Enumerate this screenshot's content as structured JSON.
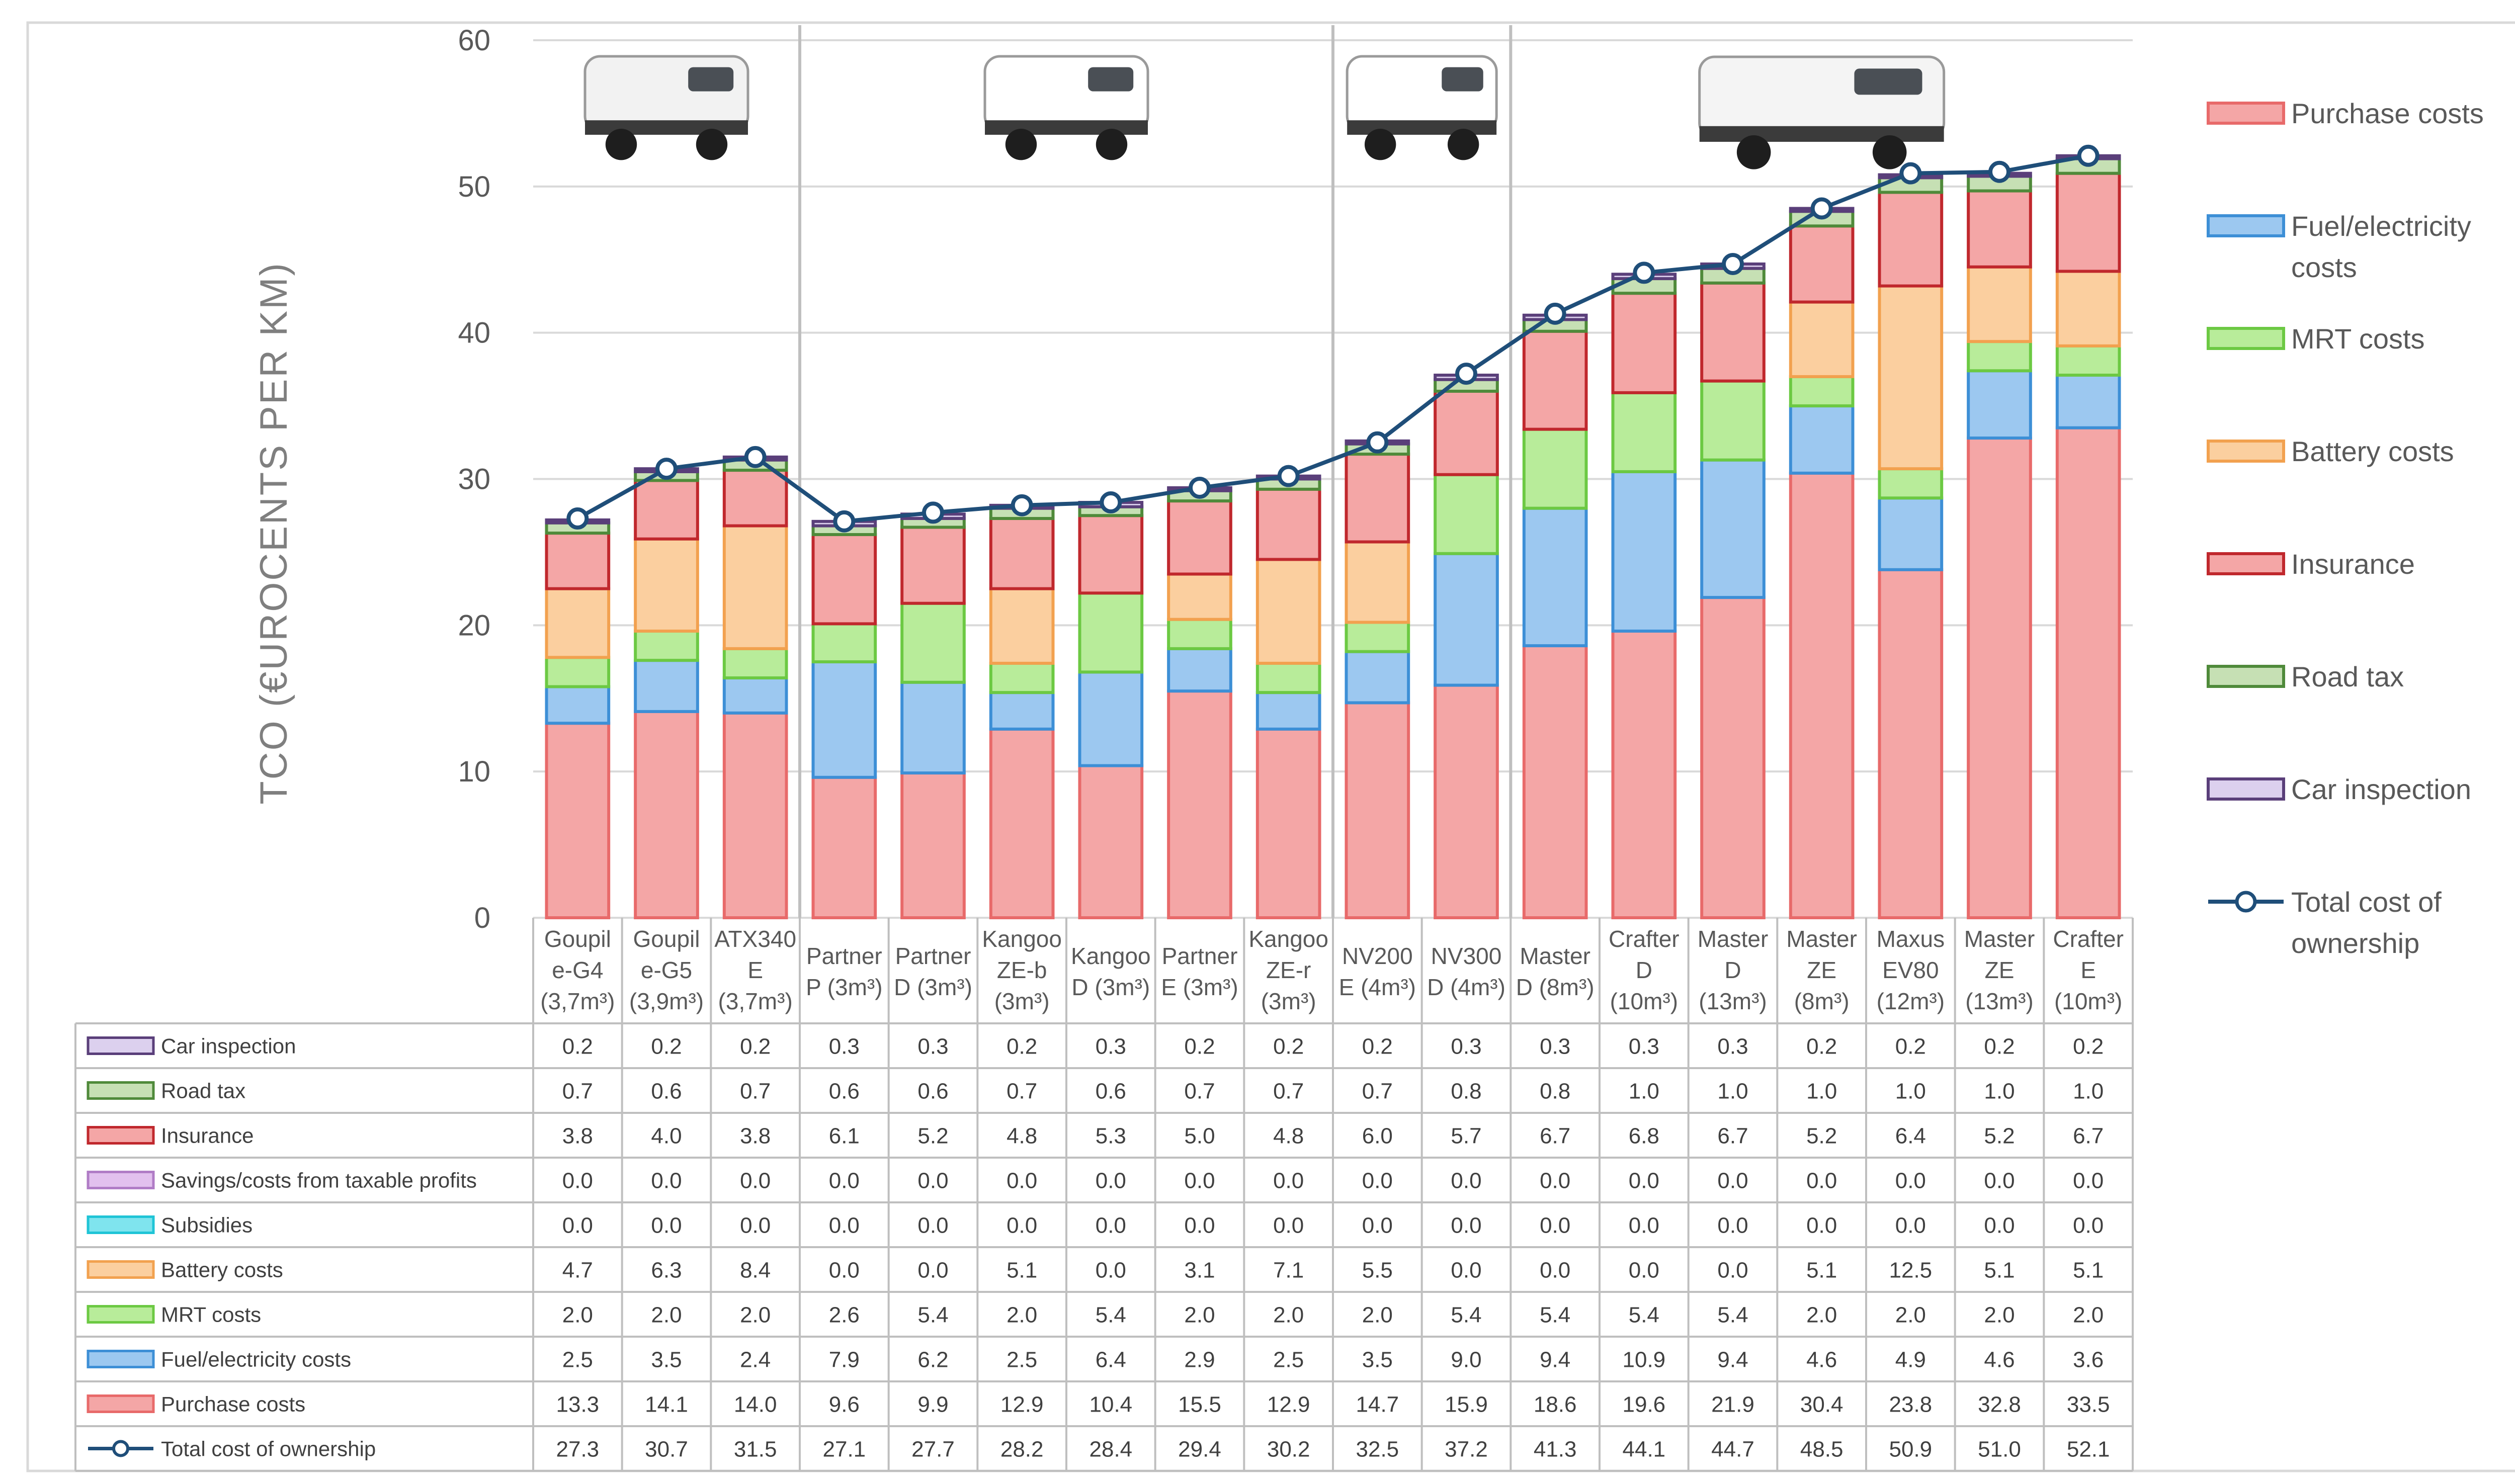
{
  "chart_data": {
    "type": "bar",
    "stacked": true,
    "ylabel": "TCO (€UROCENTS PER KM)",
    "ylim": [
      0,
      60
    ],
    "yticks": [
      0,
      10,
      20,
      30,
      40,
      50,
      60
    ],
    "grid": true,
    "legend_position": "right",
    "categories": [
      [
        "Goupil",
        "e-G4",
        "(3,7m³)"
      ],
      [
        "Goupil",
        "e-G5",
        "(3,9m³)"
      ],
      [
        "ATX340",
        "E",
        "(3,7m³)"
      ],
      [
        "Partner",
        "P (3m³)"
      ],
      [
        "Partner",
        "D (3m³)"
      ],
      [
        "Kangoo",
        "ZE-b",
        "(3m³)"
      ],
      [
        "Kangoo",
        "D (3m³)"
      ],
      [
        "Partner",
        "E (3m³)"
      ],
      [
        "Kangoo",
        "ZE-r",
        "(3m³)"
      ],
      [
        "NV200",
        "E (4m³)"
      ],
      [
        "NV300",
        "D (4m³)"
      ],
      [
        "Master",
        "D (8m³)"
      ],
      [
        "Crafter",
        "D",
        "(10m³)"
      ],
      [
        "Master",
        "D",
        "(13m³)"
      ],
      [
        "Master",
        "ZE",
        "(8m³)"
      ],
      [
        "Maxus",
        "EV80",
        "(12m³)"
      ],
      [
        "Master",
        "ZE",
        "(13m³)"
      ],
      [
        "Crafter",
        "E",
        "(10m³)"
      ]
    ],
    "group_separators_after": [
      2,
      8,
      10
    ],
    "series": [
      {
        "name": "Purchase costs",
        "color": "#f4a6a6",
        "edge": "#e86a6a",
        "values": [
          13.3,
          14.1,
          14.0,
          9.6,
          9.9,
          12.9,
          10.4,
          15.5,
          12.9,
          14.7,
          15.9,
          18.6,
          19.6,
          21.9,
          30.4,
          23.8,
          32.8,
          33.5
        ]
      },
      {
        "name": "Fuel/electricity costs",
        "color": "#9cc8f0",
        "edge": "#3d8fd6",
        "values": [
          2.5,
          3.5,
          2.4,
          7.9,
          6.2,
          2.5,
          6.4,
          2.9,
          2.5,
          3.5,
          9.0,
          9.4,
          10.9,
          9.4,
          4.6,
          4.9,
          4.6,
          3.6
        ]
      },
      {
        "name": "MRT costs",
        "color": "#b8ec9a",
        "edge": "#6cc943",
        "values": [
          2.0,
          2.0,
          2.0,
          2.6,
          5.4,
          2.0,
          5.4,
          2.0,
          2.0,
          2.0,
          5.4,
          5.4,
          5.4,
          5.4,
          2.0,
          2.0,
          2.0,
          2.0
        ]
      },
      {
        "name": "Battery costs",
        "color": "#fbcf9f",
        "edge": "#f2a14f",
        "values": [
          4.7,
          6.3,
          8.4,
          0.0,
          0.0,
          5.1,
          0.0,
          3.1,
          7.1,
          5.5,
          0.0,
          0.0,
          0.0,
          0.0,
          5.1,
          12.5,
          5.1,
          5.1
        ]
      },
      {
        "name": "Subsidies",
        "color": "#7fe4ee",
        "edge": "#1fc4d6",
        "legend": false,
        "values": [
          0.0,
          0.0,
          0.0,
          0.0,
          0.0,
          0.0,
          0.0,
          0.0,
          0.0,
          0.0,
          0.0,
          0.0,
          0.0,
          0.0,
          0.0,
          0.0,
          0.0,
          0.0
        ]
      },
      {
        "name": "Savings/costs from taxable profits",
        "color": "#e2c0ee",
        "edge": "#b07cc6",
        "legend": false,
        "values": [
          0.0,
          0.0,
          0.0,
          0.0,
          0.0,
          0.0,
          0.0,
          0.0,
          0.0,
          0.0,
          0.0,
          0.0,
          0.0,
          0.0,
          0.0,
          0.0,
          0.0,
          0.0
        ]
      },
      {
        "name": "Insurance",
        "color": "#f4a6a6",
        "edge": "#c0282d",
        "values": [
          3.8,
          4.0,
          3.8,
          6.1,
          5.2,
          4.8,
          5.3,
          5.0,
          4.8,
          6.0,
          5.7,
          6.7,
          6.8,
          6.7,
          5.2,
          6.4,
          5.2,
          6.7
        ]
      },
      {
        "name": "Road tax",
        "color": "#c6e0b4",
        "edge": "#4f8a3a",
        "values": [
          0.7,
          0.6,
          0.7,
          0.6,
          0.6,
          0.7,
          0.6,
          0.7,
          0.7,
          0.7,
          0.8,
          0.8,
          1.0,
          1.0,
          1.0,
          1.0,
          1.0,
          1.0
        ]
      },
      {
        "name": "Car inspection",
        "color": "#dcd0ee",
        "edge": "#5a3f7a",
        "values": [
          0.2,
          0.2,
          0.2,
          0.3,
          0.3,
          0.2,
          0.3,
          0.2,
          0.2,
          0.2,
          0.3,
          0.3,
          0.3,
          0.3,
          0.2,
          0.2,
          0.2,
          0.2
        ]
      }
    ],
    "line": {
      "name": "Total cost of ownership",
      "color": "#1f4e79",
      "values": [
        27.3,
        30.7,
        31.5,
        27.1,
        27.7,
        28.2,
        28.4,
        29.4,
        30.2,
        32.5,
        37.2,
        41.3,
        44.1,
        44.7,
        48.5,
        50.9,
        51.0,
        52.1
      ]
    },
    "legend": [
      {
        "series": "Purchase costs",
        "lines": [
          "Purchase costs"
        ]
      },
      {
        "series": "Fuel/electricity costs",
        "lines": [
          "Fuel/electricity",
          "costs"
        ]
      },
      {
        "series": "MRT costs",
        "lines": [
          "MRT costs"
        ]
      },
      {
        "series": "Battery costs",
        "lines": [
          "Battery costs"
        ]
      },
      {
        "series": "Insurance",
        "lines": [
          "Insurance"
        ]
      },
      {
        "series": "Road tax",
        "lines": [
          "Road tax"
        ]
      },
      {
        "series": "Car inspection",
        "lines": [
          "Car inspection"
        ]
      },
      {
        "series": "Total cost of ownership",
        "lines": [
          "Total cost of",
          "ownership"
        ],
        "kind": "line"
      }
    ],
    "table_rows": [
      "Car inspection",
      "Road tax",
      "Insurance",
      "Savings/costs from taxable profits",
      "Subsidies",
      "Battery costs",
      "MRT costs",
      "Fuel/electricity costs",
      "Purchase costs",
      "Total cost of ownership"
    ]
  },
  "vehicle_images": [
    {
      "name": "goupil-utility-vehicle",
      "body": "#f2f2f2",
      "cab": "#dcdcdc"
    },
    {
      "name": "peugeot-partner-van",
      "body": "#ffffff",
      "cab": "#e8e8e8"
    },
    {
      "name": "nissan-nv200-van",
      "body": "#ffffff",
      "cab": "#e8e8e8"
    },
    {
      "name": "large-panel-van",
      "body": "#f4f4f4",
      "cab": "#e2e2e2"
    }
  ]
}
